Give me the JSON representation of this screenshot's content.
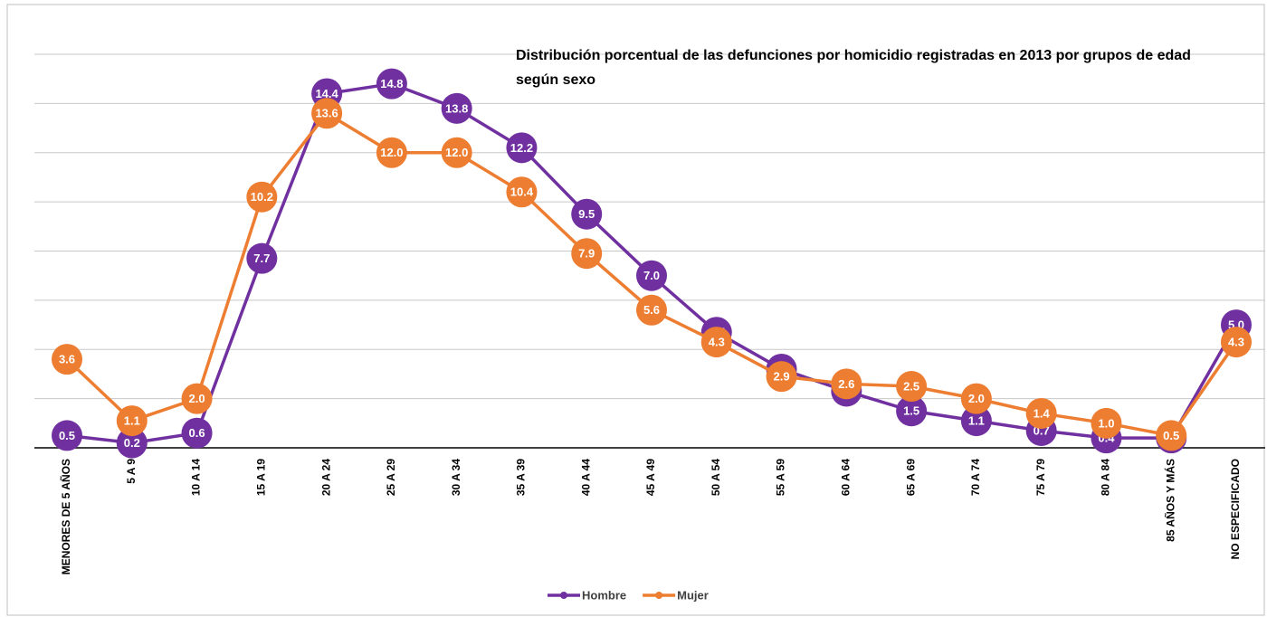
{
  "chart_data": {
    "type": "line",
    "title": "Distribución porcentual de las defunciones por homicidio  registradas en 2013 por grupos de edad según sexo",
    "categories": [
      "MENORES DE 5 AÑOS",
      "5 A 9",
      "10 A 14",
      "15 A 19",
      "20 A 24",
      "25 A 29",
      "30 A 34",
      "35 A 39",
      "40 A 44",
      "45 A 49",
      "50 A 54",
      "55 A 59",
      "60 A 64",
      "65 A 69",
      "70 A 74",
      "75 A 79",
      "80 A 84",
      "85 AÑOS Y MÁS",
      "NO ESPECIFICADO"
    ],
    "series": [
      {
        "name": "Hombre",
        "color": "#7030a0",
        "values": [
          0.5,
          0.2,
          0.6,
          7.7,
          14.4,
          14.8,
          13.8,
          12.2,
          9.5,
          7.0,
          4.7,
          3.2,
          2.3,
          1.5,
          1.1,
          0.7,
          0.4,
          0.4,
          5.0
        ],
        "value_labels": [
          "0.5",
          "0.2",
          "0.6",
          "7.7",
          "14.4",
          "14.8",
          "13.8",
          "12.2",
          "9.5",
          "7.0",
          "4.7",
          "3.2",
          "2.3",
          "1.5",
          "1.1",
          "0.7",
          "0.4",
          "0.4",
          "5.0"
        ]
      },
      {
        "name": "Mujer",
        "color": "#ed7d31",
        "values": [
          3.6,
          1.1,
          2.0,
          10.2,
          13.6,
          12.0,
          12.0,
          10.4,
          7.9,
          5.6,
          4.3,
          2.9,
          2.6,
          2.5,
          2.0,
          1.4,
          1.0,
          0.5,
          4.3
        ],
        "value_labels": [
          "3.6",
          "1.1",
          "2.0",
          "10.2",
          "13.6",
          "12.0",
          "12.0",
          "10.4",
          "7.9",
          "5.6",
          "4.3",
          "2.9",
          "2.6",
          "2.5",
          "2.0",
          "1.4",
          "1.0",
          "0.5",
          "4.3"
        ]
      }
    ],
    "ylim": [
      0,
      16
    ],
    "yticks": [
      0,
      2,
      4,
      6,
      8,
      10,
      12,
      14,
      16
    ],
    "grid": true,
    "legend": "bottom"
  }
}
